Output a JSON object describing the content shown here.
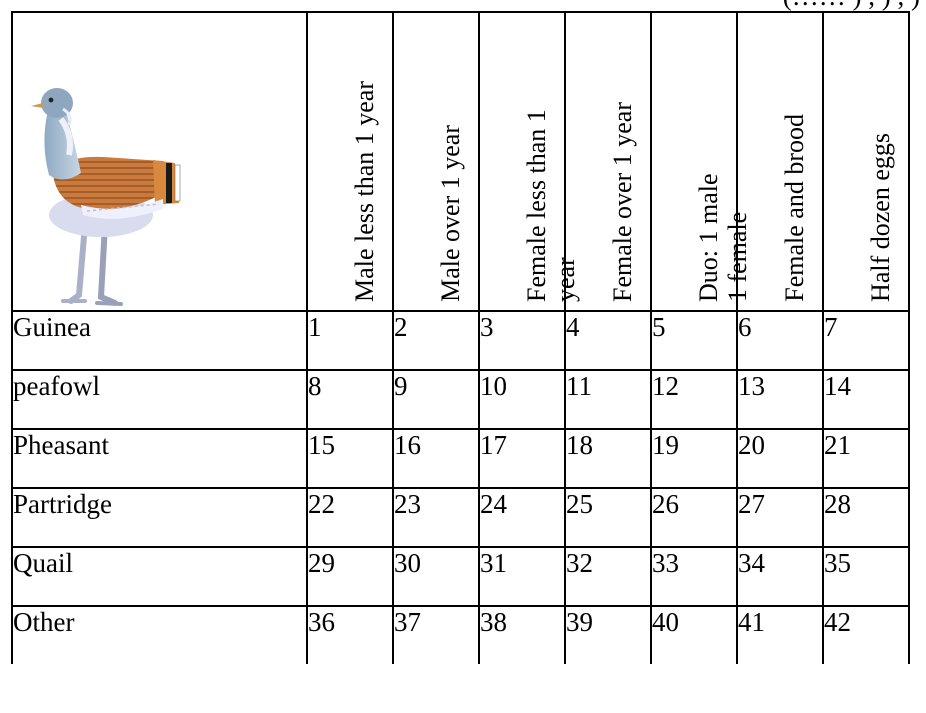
{
  "top_text": "(…… )  , ) , )",
  "illustration": {
    "icon": "bustard-bird-icon"
  },
  "columns": [
    {
      "label": "Male less than 1 year"
    },
    {
      "label": "Male over 1 year"
    },
    {
      "label": "Female less than 1 year"
    },
    {
      "label": "Female over 1 year"
    },
    {
      "label": "Duo: 1 male 1 female"
    },
    {
      "label": "Female and brood"
    },
    {
      "label": "Half dozen eggs"
    }
  ],
  "rows": [
    {
      "species": "Guinea",
      "values": [
        "1",
        "2",
        "3",
        "4",
        "5",
        "6",
        "7"
      ]
    },
    {
      "species": "peafowl",
      "values": [
        "8",
        "9",
        "10",
        "11",
        "12",
        "13",
        "14"
      ]
    },
    {
      "species": "Pheasant",
      "values": [
        "15",
        "16",
        "17",
        "18",
        "19",
        "20",
        "21"
      ]
    },
    {
      "species": "Partridge",
      "values": [
        "22",
        "23",
        "24",
        "25",
        "26",
        "27",
        "28"
      ]
    },
    {
      "species": "Quail",
      "values": [
        "29",
        "30",
        "31",
        "32",
        "33",
        "34",
        "35"
      ]
    },
    {
      "species": "Other",
      "values": [
        "36",
        "37",
        "38",
        "39",
        "40",
        "41",
        "42"
      ]
    }
  ]
}
